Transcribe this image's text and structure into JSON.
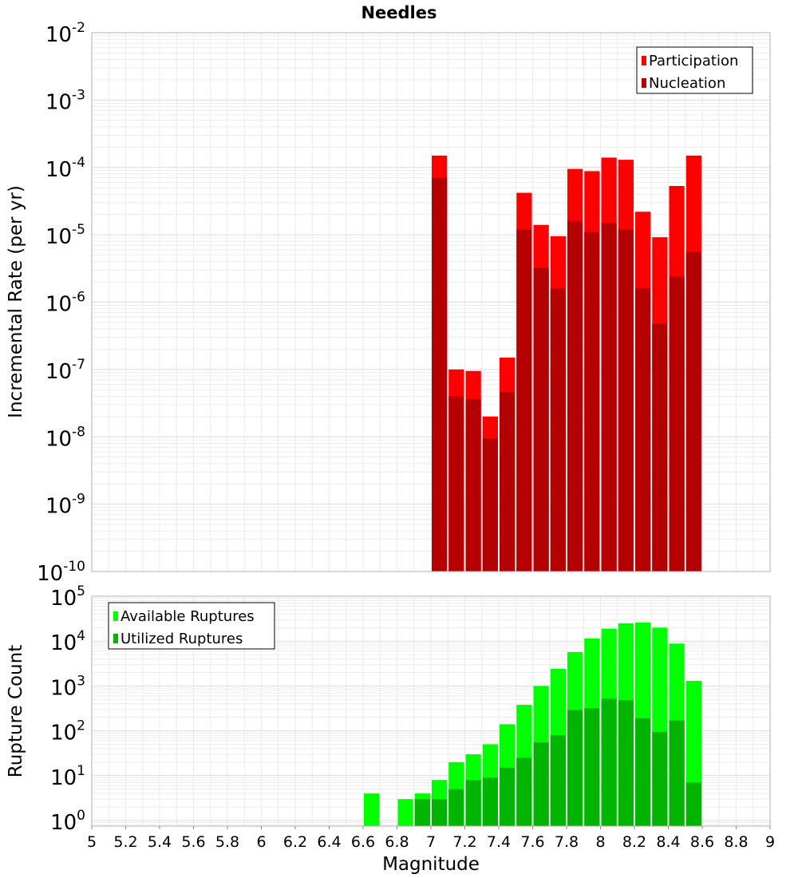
{
  "figure": {
    "title": "Needles"
  },
  "chart_data": [
    {
      "type": "bar",
      "title": "Needles",
      "xlabel": "Magnitude",
      "ylabel": "Incremental Rate (per yr)",
      "yscale": "log",
      "ylim": [
        1e-10,
        0.01
      ],
      "xlim": [
        5,
        9
      ],
      "grid": true,
      "legend_position": "top-right",
      "y_ticks": [
        {
          "base": "10",
          "exp": "-10"
        },
        {
          "base": "10",
          "exp": "-9"
        },
        {
          "base": "10",
          "exp": "-8"
        },
        {
          "base": "10",
          "exp": "-7"
        },
        {
          "base": "10",
          "exp": "-6"
        },
        {
          "base": "10",
          "exp": "-5"
        },
        {
          "base": "10",
          "exp": "-4"
        },
        {
          "base": "10",
          "exp": "-3"
        },
        {
          "base": "10",
          "exp": "-2"
        }
      ],
      "x": [
        7.05,
        7.15,
        7.25,
        7.35,
        7.45,
        7.55,
        7.65,
        7.75,
        7.85,
        7.95,
        8.05,
        8.15,
        8.25,
        8.35,
        8.45,
        8.55
      ],
      "series": [
        {
          "name": "Participation",
          "color": "#ff0000",
          "values": [
            0.00015,
            1e-07,
            9.5e-08,
            2e-08,
            1.5e-07,
            4.2e-05,
            1.4e-05,
            9.5e-06,
            9.5e-05,
            8.8e-05,
            0.00014,
            0.00013,
            2.2e-05,
            9.2e-06,
            5.3e-05,
            0.00015
          ]
        },
        {
          "name": "Nucleation",
          "color": "#b40000",
          "values": [
            7e-05,
            4e-08,
            3.6e-08,
            9.5e-09,
            4.6e-08,
            1.2e-05,
            3.2e-06,
            1.6e-06,
            1.6e-05,
            1.1e-05,
            1.5e-05,
            1.2e-05,
            1.6e-06,
            4.8e-07,
            2.4e-06,
            5.6e-06
          ]
        }
      ]
    },
    {
      "type": "bar",
      "xlabel": "Magnitude",
      "ylabel": "Rupture Count",
      "yscale": "log",
      "ylim": [
        0.75,
        100000.0
      ],
      "xlim": [
        5,
        9
      ],
      "grid": true,
      "legend_position": "top-left",
      "x_ticks": [
        "5",
        "5.2",
        "5.4",
        "5.6",
        "5.8",
        "6",
        "6.2",
        "6.4",
        "6.6",
        "6.8",
        "7",
        "7.2",
        "7.4",
        "7.6",
        "7.8",
        "8",
        "8.2",
        "8.4",
        "8.6",
        "8.8",
        "9"
      ],
      "y_ticks": [
        {
          "base": "10",
          "exp": "0"
        },
        {
          "base": "10",
          "exp": "1"
        },
        {
          "base": "10",
          "exp": "2"
        },
        {
          "base": "10",
          "exp": "3"
        },
        {
          "base": "10",
          "exp": "4"
        },
        {
          "base": "10",
          "exp": "5"
        }
      ],
      "x": [
        6.65,
        6.75,
        6.85,
        6.95,
        7.05,
        7.15,
        7.25,
        7.35,
        7.45,
        7.55,
        7.65,
        7.75,
        7.85,
        7.95,
        8.05,
        8.15,
        8.25,
        8.35,
        8.45,
        8.55
      ],
      "series": [
        {
          "name": "Available Ruptures",
          "color": "#00ff00",
          "values": [
            4,
            0,
            3,
            4,
            8,
            20,
            30,
            50,
            140,
            380,
            1000,
            2400,
            5700,
            11500,
            19000,
            25000,
            26000,
            20000,
            8800,
            1300
          ]
        },
        {
          "name": "Utilized Ruptures",
          "color": "#00b400",
          "values": [
            0,
            0,
            0,
            3,
            3,
            5,
            8,
            9,
            15,
            25,
            55,
            80,
            290,
            320,
            520,
            480,
            190,
            95,
            170,
            7
          ]
        }
      ]
    }
  ]
}
